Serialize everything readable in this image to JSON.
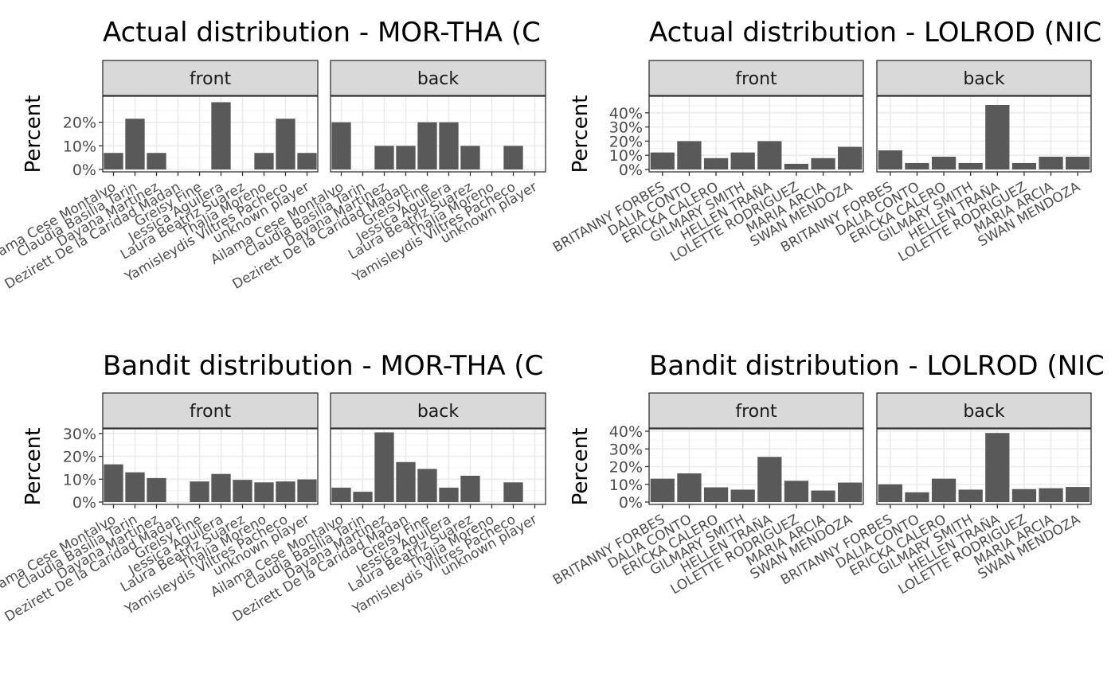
{
  "chart_data": [
    {
      "type": "bar",
      "title": "Actual distribution - MOR-THA (C",
      "ylabel": "Percent",
      "xlabel": "",
      "ylim": [
        0,
        30
      ],
      "yticks": [
        0,
        10,
        20
      ],
      "ytick_labels": [
        "0%",
        "10%",
        "20%"
      ],
      "categories": [
        "Ailama Cese Montalvo",
        "Claudia Basilia Tarin",
        "Dayana Martinez",
        "Dezirett De la Caridad Madan",
        "Greisy Fine",
        "Jessica Aguilera",
        "Laura Beatriz Suarez",
        "Thalia Moreno",
        "Yamisleydis Viltres Pacheco",
        "unknown player"
      ],
      "facets": [
        {
          "label": "front",
          "values": [
            7,
            21.5,
            7,
            0,
            0,
            28.5,
            0,
            7,
            21.5,
            7
          ]
        },
        {
          "label": "back",
          "values": [
            20,
            0,
            10,
            10,
            20,
            20,
            10,
            0,
            10,
            0
          ]
        }
      ],
      "grid": true,
      "legend": "none"
    },
    {
      "type": "bar",
      "title": "Actual distribution - LOLROD (NIC",
      "ylabel": "Percent",
      "xlabel": "",
      "ylim": [
        0,
        50
      ],
      "yticks": [
        0,
        10,
        20,
        30,
        40
      ],
      "ytick_labels": [
        "0%",
        "10%",
        "20%",
        "30%",
        "40%"
      ],
      "categories": [
        "BRITANNY FORBES",
        "DALIA CONTO",
        "ERICKA CALERO",
        "GILMARY SMITH",
        "HELLEN TRAÑA",
        "LOLETTE RODRIGUEZ",
        "MARIA ARCIA",
        "SWAN MENDOZA"
      ],
      "facets": [
        {
          "label": "front",
          "values": [
            12,
            20,
            8,
            12,
            20,
            4,
            8,
            16
          ]
        },
        {
          "label": "back",
          "values": [
            13.5,
            4.5,
            9,
            4.5,
            45.5,
            4.5,
            9,
            9
          ]
        }
      ],
      "grid": true,
      "legend": "none"
    },
    {
      "type": "bar",
      "title": "Bandit distribution - MOR-THA (C",
      "ylabel": "Percent",
      "xlabel": "",
      "ylim": [
        0,
        31
      ],
      "yticks": [
        0,
        10,
        20,
        30
      ],
      "ytick_labels": [
        "0%",
        "10%",
        "20%",
        "30%"
      ],
      "categories": [
        "Ailama Cese Montalvo",
        "Claudia Basilia Tarin",
        "Dayana Martinez",
        "Dezirett De la Caridad Madan",
        "Greisy Fine",
        "Jessica Aguilera",
        "Laura Beatriz Suarez",
        "Thalia Moreno",
        "Yamisleydis Viltres Pacheco",
        "unknown player"
      ],
      "facets": [
        {
          "label": "front",
          "values": [
            16.5,
            13,
            10.5,
            0,
            9,
            12.3,
            9.7,
            8.6,
            9,
            9.9
          ]
        },
        {
          "label": "back",
          "values": [
            6.3,
            4.5,
            30.5,
            17.5,
            14.5,
            6.3,
            11.5,
            0,
            8.6,
            0
          ]
        }
      ],
      "grid": true,
      "legend": "none"
    },
    {
      "type": "bar",
      "title": "Bandit distribution - LOLROD (NIC",
      "ylabel": "Percent",
      "xlabel": "",
      "ylim": [
        0,
        40
      ],
      "yticks": [
        0,
        10,
        20,
        30,
        40
      ],
      "ytick_labels": [
        "0%",
        "10%",
        "20%",
        "30%",
        "40%"
      ],
      "categories": [
        "BRITANNY FORBES",
        "DALIA CONTO",
        "ERICKA CALERO",
        "GILMARY SMITH",
        "HELLEN TRAÑA",
        "LOLETTE RODRIGUEZ",
        "MARIA ARCIA",
        "SWAN MENDOZA"
      ],
      "facets": [
        {
          "label": "front",
          "values": [
            13.2,
            16.2,
            8.3,
            7,
            25.5,
            12,
            6.5,
            11
          ]
        },
        {
          "label": "back",
          "values": [
            10,
            5.5,
            13.2,
            7,
            39,
            7.3,
            7.8,
            8.5
          ]
        }
      ],
      "grid": true,
      "legend": "none"
    }
  ],
  "colors": {
    "bar": "#595959",
    "strip_fill": "#d9d9d9",
    "panel_border": "#333333",
    "grid_major": "#ebebeb",
    "grid_minor": "#f4f4f4",
    "tick_text": "#4d4d4d"
  }
}
